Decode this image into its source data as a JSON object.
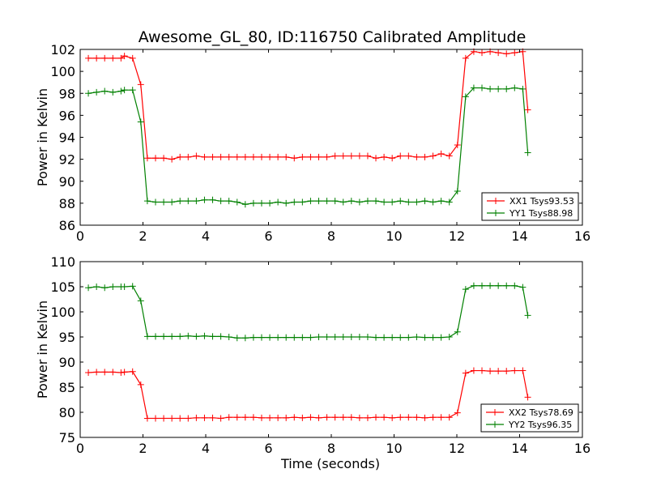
{
  "figure": {
    "title": "Awesome_GL_80, ID:116750 Calibrated Amplitude"
  },
  "chart_data": [
    {
      "type": "line",
      "title": "Awesome_GL_80, ID:116750 Calibrated Amplitude",
      "xlabel": "",
      "ylabel": "Power in Kelvin",
      "xlim": [
        0,
        16
      ],
      "ylim": [
        86,
        102
      ],
      "xticks": [
        "0",
        "2",
        "4",
        "6",
        "8",
        "10",
        "12",
        "14",
        "16"
      ],
      "yticks": [
        "86",
        "88",
        "90",
        "92",
        "94",
        "96",
        "98",
        "100",
        "102"
      ],
      "grid": false,
      "legend_position": "bottom-right",
      "series": [
        {
          "name": "XX1 Tsys93.53",
          "color": "#ff0000",
          "x": [
            0.26,
            0.52,
            0.78,
            1.04,
            1.3,
            1.41,
            1.67,
            1.93,
            2.14,
            2.4,
            2.66,
            2.92,
            3.18,
            3.44,
            3.7,
            3.96,
            4.22,
            4.48,
            4.74,
            5.0,
            5.26,
            5.52,
            5.78,
            6.04,
            6.3,
            6.56,
            6.82,
            7.08,
            7.34,
            7.6,
            7.86,
            8.12,
            8.38,
            8.64,
            8.9,
            9.16,
            9.42,
            9.68,
            9.94,
            10.2,
            10.46,
            10.72,
            10.98,
            11.24,
            11.5,
            11.76,
            12.02,
            12.28,
            12.54,
            12.8,
            13.06,
            13.32,
            13.58,
            13.84,
            14.1,
            14.26
          ],
          "y": [
            101.2,
            101.2,
            101.2,
            101.2,
            101.2,
            101.4,
            101.2,
            98.8,
            92.1,
            92.1,
            92.1,
            92.0,
            92.2,
            92.2,
            92.3,
            92.2,
            92.2,
            92.2,
            92.2,
            92.2,
            92.2,
            92.2,
            92.2,
            92.2,
            92.2,
            92.2,
            92.1,
            92.2,
            92.2,
            92.2,
            92.2,
            92.3,
            92.3,
            92.3,
            92.3,
            92.3,
            92.1,
            92.2,
            92.1,
            92.3,
            92.3,
            92.2,
            92.2,
            92.3,
            92.5,
            92.3,
            93.3,
            101.2,
            101.8,
            101.7,
            101.8,
            101.7,
            101.6,
            101.7,
            101.8,
            96.5
          ]
        },
        {
          "name": "YY1 Tsys88.98",
          "color": "#008000",
          "x": [
            0.26,
            0.52,
            0.78,
            1.04,
            1.3,
            1.41,
            1.67,
            1.93,
            2.14,
            2.4,
            2.66,
            2.92,
            3.18,
            3.44,
            3.7,
            3.96,
            4.22,
            4.48,
            4.74,
            5.0,
            5.26,
            5.52,
            5.78,
            6.04,
            6.3,
            6.56,
            6.82,
            7.08,
            7.34,
            7.6,
            7.86,
            8.12,
            8.38,
            8.64,
            8.9,
            9.16,
            9.42,
            9.68,
            9.94,
            10.2,
            10.46,
            10.72,
            10.98,
            11.24,
            11.5,
            11.76,
            12.02,
            12.28,
            12.54,
            12.8,
            13.06,
            13.32,
            13.58,
            13.84,
            14.1,
            14.26
          ],
          "y": [
            98.0,
            98.1,
            98.2,
            98.1,
            98.2,
            98.3,
            98.3,
            95.4,
            88.2,
            88.1,
            88.1,
            88.1,
            88.2,
            88.2,
            88.2,
            88.3,
            88.3,
            88.2,
            88.2,
            88.1,
            87.9,
            88.0,
            88.0,
            88.0,
            88.1,
            88.0,
            88.1,
            88.1,
            88.2,
            88.2,
            88.2,
            88.2,
            88.1,
            88.2,
            88.1,
            88.2,
            88.2,
            88.1,
            88.1,
            88.2,
            88.1,
            88.1,
            88.2,
            88.1,
            88.2,
            88.1,
            89.1,
            97.7,
            98.5,
            98.5,
            98.4,
            98.4,
            98.4,
            98.5,
            98.4,
            92.6
          ]
        }
      ]
    },
    {
      "type": "line",
      "title": "",
      "xlabel": "Time (seconds)",
      "ylabel": "Power in Kelvin",
      "xlim": [
        0,
        16
      ],
      "ylim": [
        75,
        110
      ],
      "xticks": [
        "0",
        "2",
        "4",
        "6",
        "8",
        "10",
        "12",
        "14",
        "16"
      ],
      "yticks": [
        "75",
        "80",
        "85",
        "90",
        "95",
        "100",
        "105",
        "110"
      ],
      "grid": false,
      "legend_position": "bottom-right",
      "series": [
        {
          "name": "XX2 Tsys78.69",
          "color": "#ff0000",
          "x": [
            0.26,
            0.52,
            0.78,
            1.04,
            1.3,
            1.41,
            1.67,
            1.93,
            2.14,
            2.4,
            2.66,
            2.92,
            3.18,
            3.44,
            3.7,
            3.96,
            4.22,
            4.48,
            4.74,
            5.0,
            5.26,
            5.52,
            5.78,
            6.04,
            6.3,
            6.56,
            6.82,
            7.08,
            7.34,
            7.6,
            7.86,
            8.12,
            8.38,
            8.64,
            8.9,
            9.16,
            9.42,
            9.68,
            9.94,
            10.2,
            10.46,
            10.72,
            10.98,
            11.24,
            11.5,
            11.76,
            12.02,
            12.28,
            12.54,
            12.8,
            13.06,
            13.32,
            13.58,
            13.84,
            14.1,
            14.26
          ],
          "y": [
            87.9,
            88.0,
            88.0,
            88.0,
            87.9,
            88.0,
            88.1,
            85.5,
            78.8,
            78.8,
            78.8,
            78.8,
            78.8,
            78.8,
            78.9,
            78.9,
            78.9,
            78.8,
            79.0,
            79.0,
            79.0,
            79.0,
            78.9,
            78.9,
            78.9,
            78.9,
            79.0,
            78.9,
            79.0,
            78.9,
            79.0,
            79.0,
            79.0,
            79.0,
            78.9,
            78.9,
            79.0,
            79.0,
            78.9,
            79.0,
            79.0,
            79.0,
            78.9,
            79.0,
            79.0,
            79.0,
            79.9,
            87.8,
            88.3,
            88.3,
            88.2,
            88.2,
            88.2,
            88.3,
            88.3,
            83.0
          ]
        },
        {
          "name": "YY2 Tsys96.35",
          "color": "#008000",
          "x": [
            0.26,
            0.52,
            0.78,
            1.04,
            1.3,
            1.41,
            1.67,
            1.93,
            2.14,
            2.4,
            2.66,
            2.92,
            3.18,
            3.44,
            3.7,
            3.96,
            4.22,
            4.48,
            4.74,
            5.0,
            5.26,
            5.52,
            5.78,
            6.04,
            6.3,
            6.56,
            6.82,
            7.08,
            7.34,
            7.6,
            7.86,
            8.12,
            8.38,
            8.64,
            8.9,
            9.16,
            9.42,
            9.68,
            9.94,
            10.2,
            10.46,
            10.72,
            10.98,
            11.24,
            11.5,
            11.76,
            12.02,
            12.28,
            12.54,
            12.8,
            13.06,
            13.32,
            13.58,
            13.84,
            14.1,
            14.26
          ],
          "y": [
            104.8,
            105.0,
            104.8,
            105.0,
            105.0,
            105.0,
            105.1,
            102.2,
            95.1,
            95.1,
            95.1,
            95.1,
            95.1,
            95.2,
            95.1,
            95.2,
            95.1,
            95.1,
            95.0,
            94.8,
            94.8,
            94.9,
            94.9,
            94.9,
            94.9,
            94.9,
            94.9,
            94.9,
            94.9,
            95.0,
            95.0,
            95.0,
            95.0,
            95.0,
            95.0,
            95.0,
            94.9,
            94.9,
            94.9,
            94.9,
            94.9,
            95.0,
            94.9,
            94.9,
            94.9,
            95.0,
            96.0,
            104.5,
            105.2,
            105.2,
            105.2,
            105.2,
            105.2,
            105.2,
            104.9,
            99.3
          ]
        }
      ]
    }
  ]
}
